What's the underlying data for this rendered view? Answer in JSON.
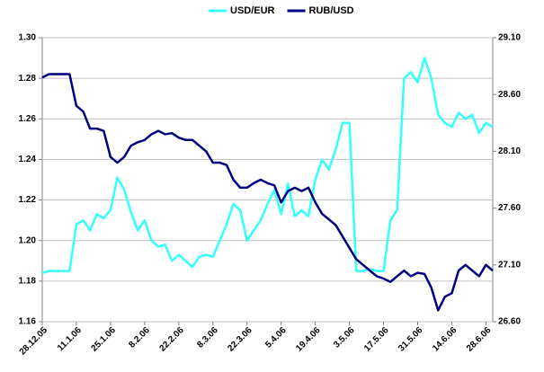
{
  "chart_data": {
    "type": "line",
    "categories": [
      "28.12.05",
      null,
      null,
      null,
      null,
      "11.1.06",
      null,
      null,
      null,
      null,
      "25.1.06",
      null,
      null,
      null,
      null,
      "8.2.06",
      null,
      null,
      null,
      null,
      "22.2.06",
      null,
      null,
      null,
      null,
      "8.3.06",
      null,
      null,
      null,
      null,
      "22.3.06",
      null,
      null,
      null,
      null,
      "5.4.06",
      null,
      null,
      null,
      null,
      "19.4.06",
      null,
      null,
      null,
      null,
      "3.5.06",
      null,
      null,
      null,
      null,
      "17.5.06",
      null,
      null,
      null,
      null,
      "31.5.06",
      null,
      null,
      null,
      null,
      "14.6.06",
      null,
      null,
      null,
      null,
      "28.6.06",
      null
    ],
    "series": [
      {
        "name": "USD/EUR",
        "color": "#33ffff",
        "values": [
          1.184,
          1.185,
          1.185,
          1.185,
          1.185,
          1.208,
          1.21,
          1.205,
          1.213,
          1.211,
          1.215,
          1.231,
          1.225,
          1.214,
          1.205,
          1.21,
          1.2,
          1.197,
          1.198,
          1.19,
          1.193,
          1.19,
          1.187,
          1.192,
          1.193,
          1.192,
          1.2,
          1.208,
          1.218,
          1.215,
          1.2,
          1.205,
          1.21,
          1.218,
          1.225,
          1.213,
          1.228,
          1.212,
          1.215,
          1.212,
          1.23,
          1.24,
          1.235,
          1.245,
          1.258,
          1.258,
          1.185,
          1.185,
          1.186,
          1.185,
          1.185,
          1.21,
          1.215,
          1.28,
          1.283,
          1.278,
          1.29,
          1.28,
          1.262,
          1.258,
          1.256,
          1.263,
          1.26,
          1.262,
          1.253,
          1.258,
          1.256
        ]
      },
      {
        "name": "RUB/USD",
        "color": "#000080",
        "axis": "y2",
        "values": [
          28.75,
          28.78,
          28.78,
          28.78,
          28.78,
          28.5,
          28.45,
          28.3,
          28.3,
          28.28,
          28.05,
          28.0,
          28.05,
          28.15,
          28.18,
          28.2,
          28.25,
          28.28,
          28.25,
          28.26,
          28.22,
          28.2,
          28.2,
          28.15,
          28.1,
          28.0,
          28.0,
          27.98,
          27.85,
          27.78,
          27.78,
          27.82,
          27.85,
          27.82,
          27.8,
          27.65,
          27.75,
          27.78,
          27.75,
          27.78,
          27.65,
          27.55,
          27.5,
          27.45,
          27.35,
          27.25,
          27.15,
          27.1,
          27.05,
          27.0,
          26.98,
          26.95,
          27.0,
          27.05,
          27.0,
          27.03,
          27.02,
          26.9,
          26.7,
          26.82,
          26.85,
          27.05,
          27.1,
          27.05,
          27.0,
          27.1,
          27.05
        ]
      }
    ],
    "ylim": [
      1.16,
      1.3
    ],
    "yticks": [
      1.16,
      1.18,
      {
        "value": 1.2,
        "label": "1.20"
      },
      1.22,
      1.24,
      1.26,
      1.28,
      {
        "value": 1.3,
        "label": "1.30"
      }
    ],
    "y2lim": [
      26.6,
      29.1
    ],
    "y2ticks": [
      {
        "value": 26.6,
        "label": "26.60"
      },
      {
        "value": 27.1,
        "label": "27.10"
      },
      {
        "value": 27.6,
        "label": "27.60"
      },
      {
        "value": 28.1,
        "label": "28.10"
      },
      {
        "value": 28.6,
        "label": "28.60"
      },
      {
        "value": 29.1,
        "label": "29.10"
      }
    ],
    "grid": true,
    "legend": "top"
  }
}
